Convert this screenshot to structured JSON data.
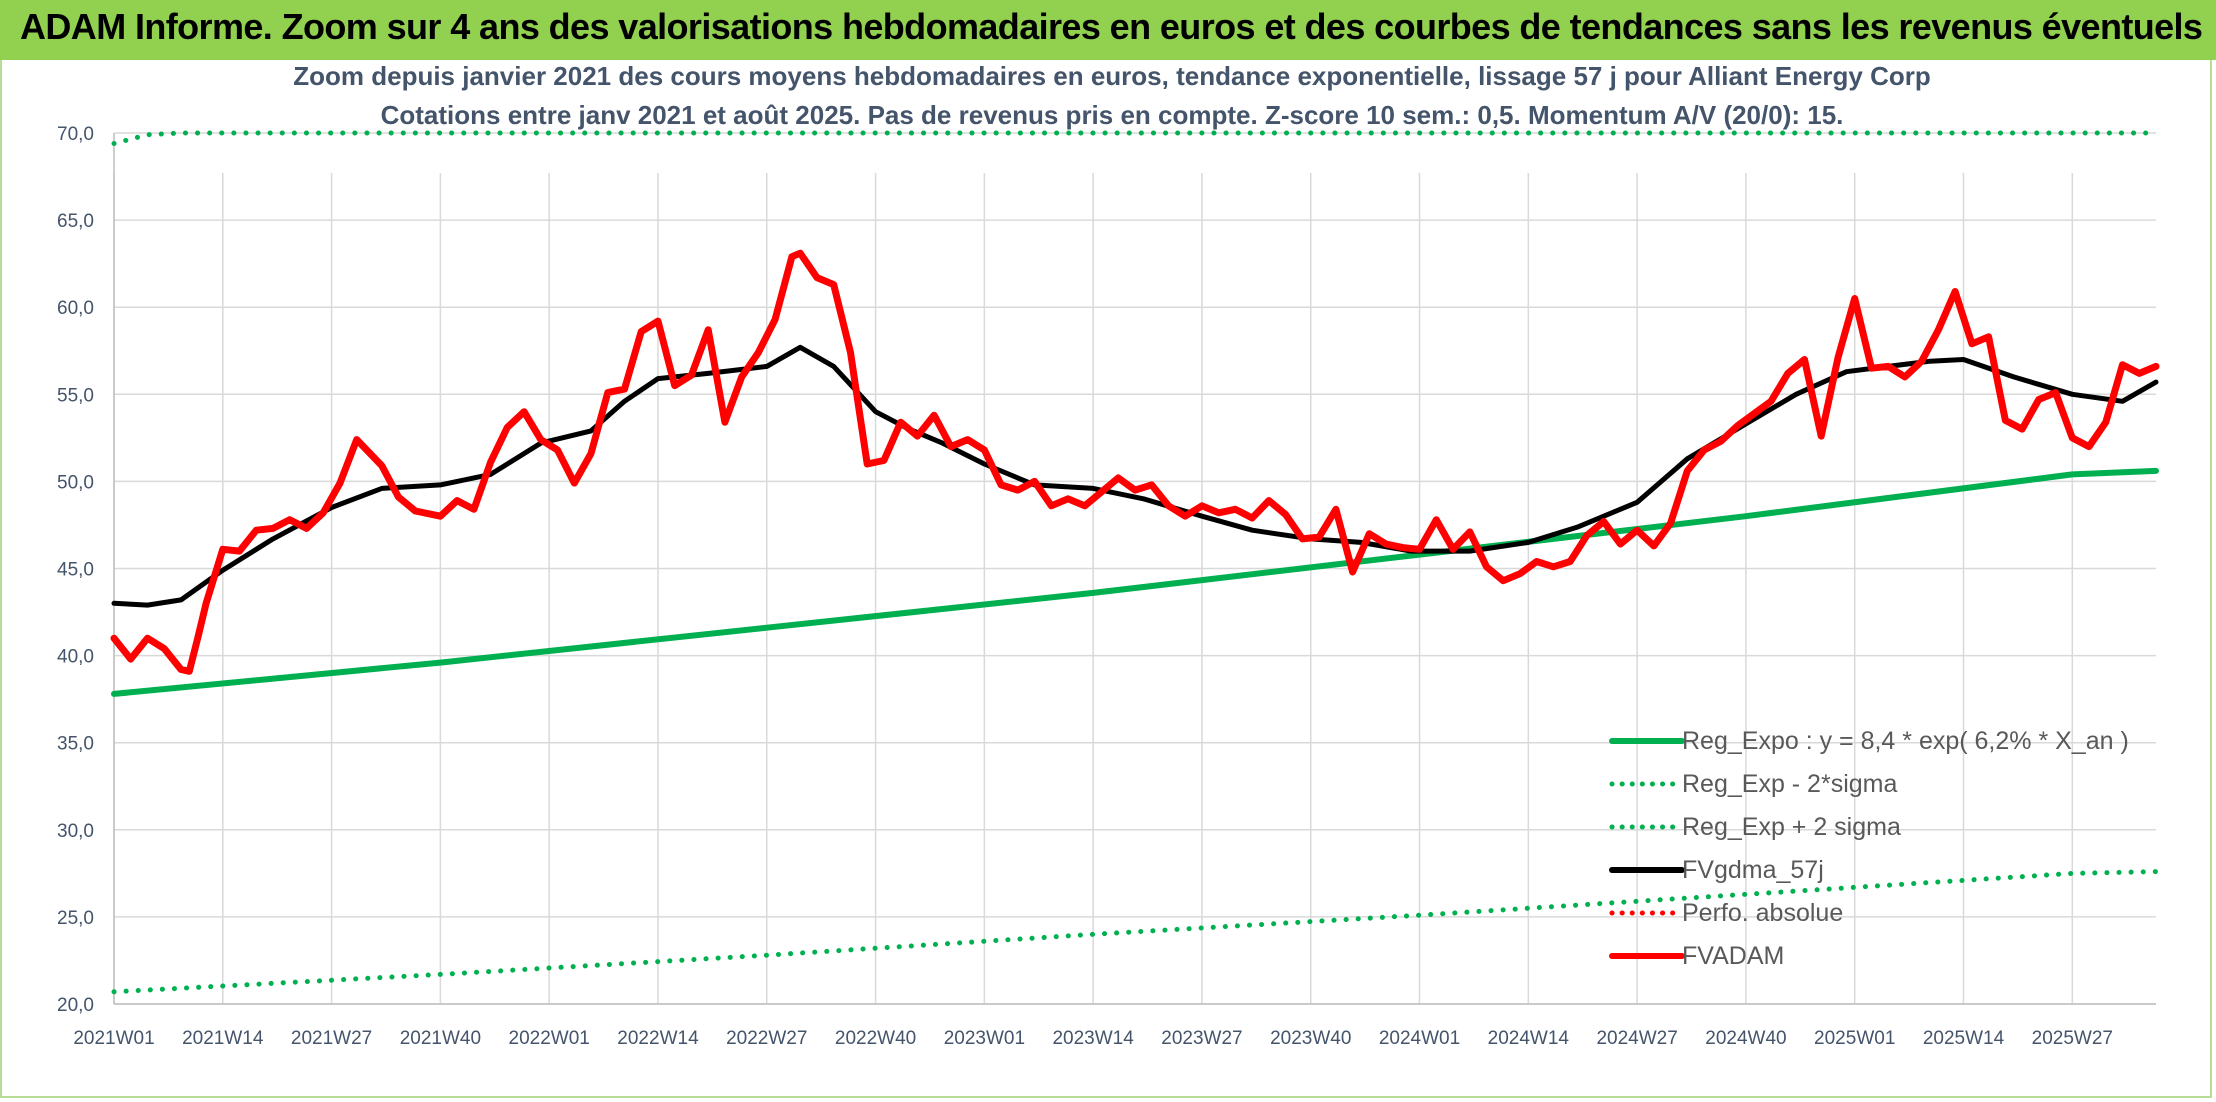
{
  "banner": {
    "title": "ADAM Informe. Zoom sur 4 ans des valorisations hebdomadaires en euros et des courbes de tendances sans les revenus éventuels",
    "color": "#92d050"
  },
  "chart_data": {
    "type": "line",
    "title": "Zoom depuis janvier 2021 des cours moyens hebdomadaires en euros, tendance exponentielle, lissage 57 j pour Alliant Energy Corp",
    "subtitle": "Cotations entre janv 2021 et août 2025. Pas de revenus pris en compte. Z-score 10 sem.: 0,5. Momentum A/V (20/0): 15.",
    "xlabel": "",
    "ylabel": "",
    "ylim": [
      20,
      70
    ],
    "yticks": [
      "20,0",
      "25,0",
      "30,0",
      "35,0",
      "40,0",
      "45,0",
      "50,0",
      "55,0",
      "60,0",
      "65,0",
      "70,0"
    ],
    "x_start_week": "2021W01",
    "x_end_week": "2025W37",
    "xticks": [
      "2021W01",
      "2021W14",
      "2021W27",
      "2021W40",
      "2022W01",
      "2022W14",
      "2022W27",
      "2022W40",
      "2023W01",
      "2023W14",
      "2023W27",
      "2023W40",
      "2024W01",
      "2024W14",
      "2024W27",
      "2024W40",
      "2025W01",
      "2025W14",
      "2025W27"
    ],
    "grid": true,
    "legend_position": "bottom-right",
    "series": [
      {
        "name": "Reg_Expo : y = 8,4 * exp( 6,2% *  X_an )",
        "color": "#00b050",
        "style": "solid",
        "x": [
          "2021W01",
          "2021W40",
          "2022W27",
          "2023W14",
          "2024W01",
          "2024W40",
          "2025W27",
          "2025W37"
        ],
        "y": [
          37.8,
          39.6,
          41.6,
          43.6,
          45.8,
          48.0,
          50.4,
          50.6
        ]
      },
      {
        "name": "Reg_Exp - 2*sigma",
        "color": "#00b050",
        "style": "dotted",
        "x": [
          "2021W01",
          "2021W40",
          "2022W27",
          "2023W14",
          "2024W01",
          "2024W40",
          "2025W27",
          "2025W37"
        ],
        "y": [
          20.7,
          21.7,
          22.8,
          24.0,
          25.1,
          26.3,
          27.5,
          27.6
        ]
      },
      {
        "name": "Reg_Exp + 2 sigma",
        "color": "#00b050",
        "style": "dotted",
        "x": [
          "2021W01",
          "2021W05",
          "2021W09",
          "2021W20",
          "2025W09",
          "2025W37"
        ],
        "y": [
          69.4,
          69.9,
          70.0,
          70.0,
          70.0,
          70.0
        ]
      },
      {
        "name": "FVgdma_57j",
        "color": "#000000",
        "style": "solid",
        "x": [
          "2021W01",
          "2021W05",
          "2021W09",
          "2021W14",
          "2021W20",
          "2021W27",
          "2021W33",
          "2021W40",
          "2021W46",
          "2021W52",
          "2022W06",
          "2022W10",
          "2022W14",
          "2022W20",
          "2022W27",
          "2022W31",
          "2022W35",
          "2022W40",
          "2022W44",
          "2022W48",
          "2023W01",
          "2023W07",
          "2023W14",
          "2023W20",
          "2023W27",
          "2023W33",
          "2023W40",
          "2023W46",
          "2023W52",
          "2024W07",
          "2024W14",
          "2024W20",
          "2024W27",
          "2024W33",
          "2024W40",
          "2024W46",
          "2024W52",
          "2025W05",
          "2025W10",
          "2025W14",
          "2025W20",
          "2025W27",
          "2025W33",
          "2025W37"
        ],
        "y": [
          43.0,
          42.9,
          43.2,
          44.9,
          46.7,
          48.5,
          49.6,
          49.8,
          50.4,
          52.2,
          52.9,
          54.6,
          55.9,
          56.2,
          56.6,
          57.7,
          56.6,
          54.0,
          53.0,
          52.2,
          51.0,
          49.8,
          49.6,
          49.0,
          48.0,
          47.2,
          46.7,
          46.5,
          46.0,
          46.0,
          46.5,
          47.4,
          48.8,
          51.3,
          53.3,
          55.0,
          56.3,
          56.6,
          56.9,
          57.0,
          56.0,
          55.0,
          54.6,
          55.7
        ]
      },
      {
        "name": "Perfo. absolue",
        "color": "#ff0000",
        "style": "dotted",
        "x": [],
        "y": []
      },
      {
        "name": "FVADAM",
        "color": "#ff0000",
        "style": "solid",
        "x": [
          "2021W01",
          "2021W03",
          "2021W05",
          "2021W07",
          "2021W09",
          "2021W10",
          "2021W11",
          "2021W12",
          "2021W14",
          "2021W16",
          "2021W18",
          "2021W20",
          "2021W22",
          "2021W24",
          "2021W26",
          "2021W28",
          "2021W30",
          "2021W31",
          "2021W33",
          "2021W35",
          "2021W37",
          "2021W40",
          "2021W42",
          "2021W44",
          "2021W46",
          "2021W48",
          "2021W50",
          "2021W52",
          "2022W02",
          "2022W04",
          "2022W06",
          "2022W08",
          "2022W10",
          "2022W12",
          "2022W14",
          "2022W16",
          "2022W18",
          "2022W20",
          "2022W22",
          "2022W24",
          "2022W26",
          "2022W28",
          "2022W30",
          "2022W31",
          "2022W33",
          "2022W35",
          "2022W37",
          "2022W39",
          "2022W41",
          "2022W43",
          "2022W45",
          "2022W47",
          "2022W49",
          "2022W51",
          "2023W01",
          "2023W03",
          "2023W05",
          "2023W07",
          "2023W09",
          "2023W11",
          "2023W13",
          "2023W15",
          "2023W17",
          "2023W19",
          "2023W21",
          "2023W23",
          "2023W25",
          "2023W27",
          "2023W29",
          "2023W31",
          "2023W33",
          "2023W35",
          "2023W37",
          "2023W39",
          "2023W41",
          "2023W43",
          "2023W45",
          "2023W47",
          "2023W49",
          "2023W51",
          "2024W01",
          "2024W03",
          "2024W05",
          "2024W07",
          "2024W09",
          "2024W11",
          "2024W13",
          "2024W15",
          "2024W17",
          "2024W19",
          "2024W21",
          "2024W23",
          "2024W25",
          "2024W27",
          "2024W29",
          "2024W31",
          "2024W33",
          "2024W35",
          "2024W37",
          "2024W39",
          "2024W41",
          "2024W43",
          "2024W45",
          "2024W47",
          "2024W49",
          "2024W51",
          "2025W01",
          "2025W03",
          "2025W05",
          "2025W07",
          "2025W09",
          "2025W11",
          "2025W13",
          "2025W15",
          "2025W17",
          "2025W19",
          "2025W21",
          "2025W23",
          "2025W25",
          "2025W27",
          "2025W29",
          "2025W31",
          "2025W33",
          "2025W35",
          "2025W37"
        ],
        "y": [
          41.0,
          39.8,
          41.0,
          40.4,
          39.2,
          39.1,
          41.0,
          43.0,
          46.1,
          46.0,
          47.2,
          47.3,
          47.8,
          47.3,
          48.2,
          49.9,
          52.4,
          51.9,
          50.9,
          49.1,
          48.3,
          48.0,
          48.9,
          48.4,
          51.1,
          53.1,
          54.0,
          52.4,
          51.8,
          49.9,
          51.6,
          55.1,
          55.3,
          58.6,
          59.2,
          55.5,
          56.1,
          58.7,
          53.4,
          56.0,
          57.4,
          59.3,
          62.9,
          63.1,
          61.7,
          61.3,
          57.4,
          51.0,
          51.2,
          53.4,
          52.6,
          53.8,
          52.0,
          52.4,
          51.8,
          49.8,
          49.5,
          50.0,
          48.6,
          49.0,
          48.6,
          49.4,
          50.2,
          49.5,
          49.8,
          48.6,
          48.0,
          48.6,
          48.2,
          48.4,
          47.9,
          48.9,
          48.1,
          46.7,
          46.8,
          48.4,
          44.8,
          47.0,
          46.4,
          46.2,
          46.1,
          47.8,
          46.1,
          47.1,
          45.1,
          44.3,
          44.7,
          45.4,
          45.1,
          45.4,
          46.9,
          47.7,
          46.4,
          47.2,
          46.3,
          47.6,
          50.6,
          51.8,
          52.3,
          53.2,
          53.9,
          54.6,
          56.2,
          57.0,
          52.6,
          57.1,
          60.5,
          56.5,
          56.6,
          56.0,
          56.9,
          58.7,
          60.9,
          57.9,
          58.3,
          53.5,
          53.0,
          54.7,
          55.1,
          52.5,
          52.0,
          53.4,
          56.7,
          56.2,
          56.6
        ]
      }
    ]
  }
}
